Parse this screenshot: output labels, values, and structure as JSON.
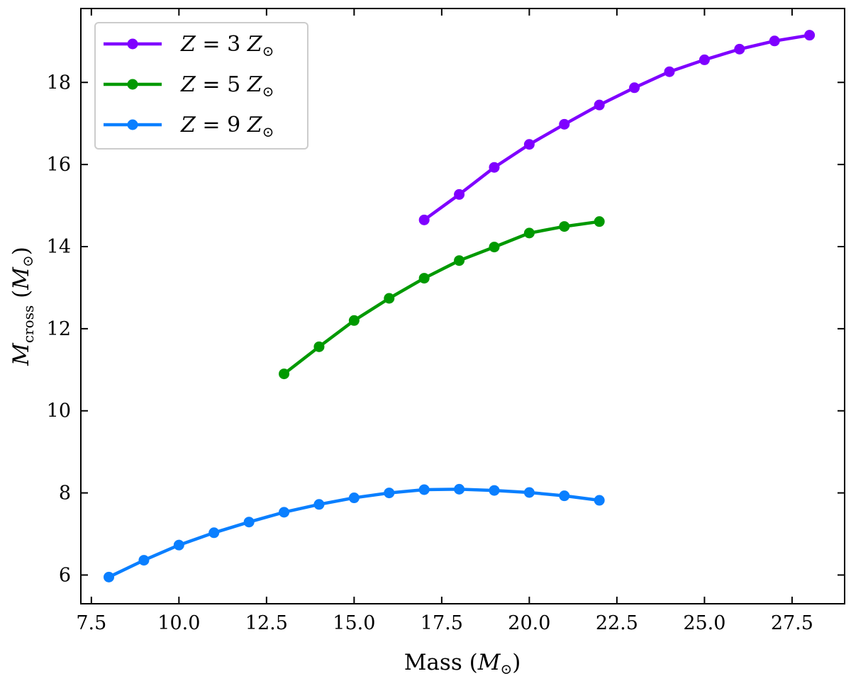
{
  "chart_data": {
    "type": "line",
    "title": "",
    "xlabel": {
      "base": "Mass (",
      "var": "M",
      "sub": "⊙",
      "close": ")"
    },
    "ylabel": {
      "var": "M",
      "sub": "cross",
      "open": " (",
      "var2": "M",
      "sub2": "⊙",
      "close": ")"
    },
    "xlim": [
      7.2,
      29.0
    ],
    "ylim": [
      5.3,
      19.8
    ],
    "xticks": [
      "7.5",
      "10.0",
      "12.5",
      "15.0",
      "17.5",
      "20.0",
      "22.5",
      "25.0",
      "27.5"
    ],
    "xtick_values": [
      7.5,
      10.0,
      12.5,
      15.0,
      17.5,
      20.0,
      22.5,
      25.0,
      27.5
    ],
    "yticks": [
      "6",
      "8",
      "10",
      "12",
      "14",
      "16",
      "18"
    ],
    "ytick_values": [
      6,
      8,
      10,
      12,
      14,
      16,
      18
    ],
    "grid": false,
    "legend_position": "upper-left",
    "series": [
      {
        "name": "Z = 3 Z⊙",
        "legend": {
          "var": "Z",
          "eq": " = 3 ",
          "var2": "Z",
          "sub": "⊙"
        },
        "color": "#7f00ff",
        "x": [
          17,
          18,
          19,
          20,
          21,
          22,
          23,
          24,
          25,
          26,
          27,
          28
        ],
        "y": [
          14.65,
          15.27,
          15.93,
          16.49,
          16.98,
          17.45,
          17.87,
          18.26,
          18.55,
          18.81,
          19.01,
          19.15
        ]
      },
      {
        "name": "Z = 5 Z⊙",
        "legend": {
          "var": "Z",
          "eq": " = 5 ",
          "var2": "Z",
          "sub": "⊙"
        },
        "color": "#009900",
        "x": [
          13,
          14,
          15,
          16,
          17,
          18,
          19,
          20,
          21,
          22
        ],
        "y": [
          10.9,
          11.56,
          12.2,
          12.74,
          13.23,
          13.66,
          13.99,
          14.33,
          14.49,
          14.61
        ]
      },
      {
        "name": "Z = 9 Z⊙",
        "legend": {
          "var": "Z",
          "eq": " = 9 ",
          "var2": "Z",
          "sub": "⊙"
        },
        "color": "#0a7fff",
        "x": [
          8,
          9,
          10,
          11,
          12,
          13,
          14,
          15,
          16,
          17,
          18,
          19,
          20,
          21,
          22
        ],
        "y": [
          5.95,
          6.36,
          6.73,
          7.03,
          7.29,
          7.53,
          7.72,
          7.88,
          8.0,
          8.08,
          8.09,
          8.06,
          8.01,
          7.93,
          7.82
        ]
      }
    ]
  }
}
